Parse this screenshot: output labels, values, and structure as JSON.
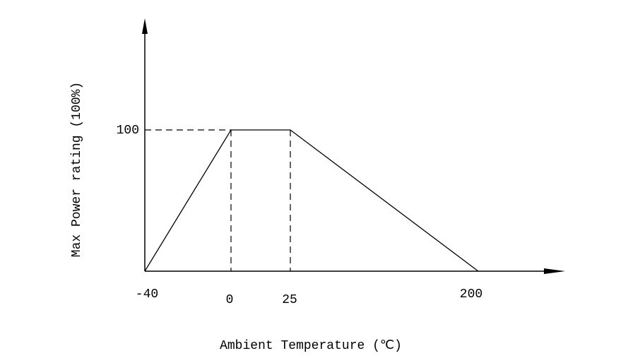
{
  "chart_data": {
    "type": "line",
    "xlabel": "Ambient Temperature (℃)",
    "ylabel": "Max Power rating (100%)",
    "categories": [
      "-40",
      "0",
      "25",
      "200"
    ],
    "series": [
      {
        "name": "",
        "color": "#000000",
        "values": [
          0,
          100,
          100,
          0
        ]
      }
    ],
    "ylim": [
      0,
      177
    ],
    "yticks": [
      100
    ]
  }
}
